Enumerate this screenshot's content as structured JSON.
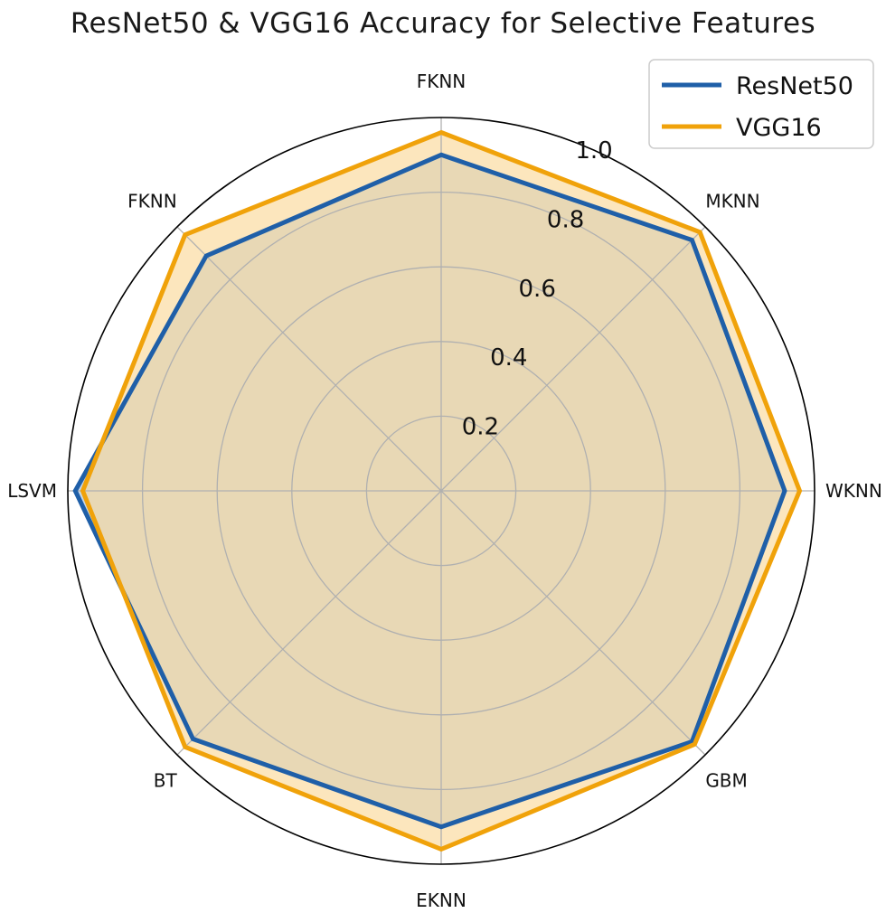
{
  "chart_data": {
    "type": "radar",
    "title": "ResNet50 & VGG16 Accuracy for Selective Features",
    "categories": [
      "FKNN",
      "MKNN",
      "WKNN",
      "GBM",
      "EKNN",
      "BT",
      "LSVM",
      "FKNN"
    ],
    "rlim": [
      0,
      1.0
    ],
    "rticks": [
      0.2,
      0.4,
      0.6,
      0.8,
      1.0
    ],
    "rtick_labels": [
      "0.2",
      "0.4",
      "0.6",
      "0.8",
      "1.0"
    ],
    "grid": true,
    "legend_position": "top-right",
    "series": [
      {
        "name": "ResNet50",
        "color": "#1f5fa8",
        "values": [
          0.9,
          0.95,
          0.92,
          0.95,
          0.9,
          0.94,
          0.98,
          0.89
        ]
      },
      {
        "name": "VGG16",
        "color": "#f0a20a",
        "fill": "#fbd99a",
        "values": [
          0.96,
          0.98,
          0.96,
          0.96,
          0.96,
          0.97,
          0.96,
          0.97
        ]
      }
    ]
  }
}
